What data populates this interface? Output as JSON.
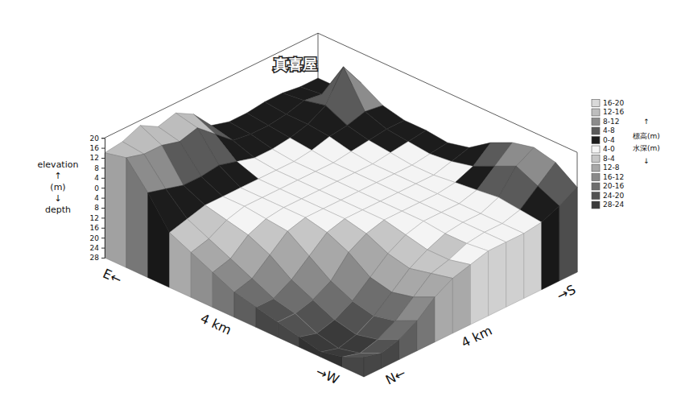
{
  "chart_data": {
    "type": "surface",
    "annotation": "真喜屋",
    "z_label": [
      "elevation",
      "↑",
      "(m)",
      "↓",
      "depth"
    ],
    "x_label": [
      "E←",
      "4 km",
      "→W"
    ],
    "y_label": [
      "N←",
      "4 km",
      "→S"
    ],
    "zlim": [
      -28,
      20
    ],
    "zticks": [
      {
        "value": -28,
        "label": "28"
      },
      {
        "value": -24,
        "label": "24"
      },
      {
        "value": -20,
        "label": "20"
      },
      {
        "value": -16,
        "label": "16"
      },
      {
        "value": -12,
        "label": "12"
      },
      {
        "value": -8,
        "label": "8"
      },
      {
        "value": -4,
        "label": "4"
      },
      0,
      4,
      8,
      12,
      16,
      20
    ],
    "z": [
      [
        14,
        16,
        6,
        -6,
        -10,
        -14,
        -18,
        -20,
        -22,
        -24,
        -26,
        -24,
        -20
      ],
      [
        15,
        14,
        4,
        -4,
        -8,
        -12,
        -16,
        -20,
        -22,
        -26,
        -28,
        -26,
        -22
      ],
      [
        18,
        14,
        2,
        -2,
        -4,
        -6,
        -10,
        -16,
        -20,
        -24,
        -26,
        -24,
        -20
      ],
      [
        14,
        12,
        2,
        -2,
        -2,
        -3,
        -4,
        -10,
        -16,
        -20,
        -22,
        -20,
        -16
      ],
      [
        16,
        14,
        3,
        -2,
        -2,
        -2,
        -2,
        -4,
        -8,
        -14,
        -16,
        -14,
        -10
      ],
      [
        12,
        8,
        1,
        -2,
        -2,
        -2,
        -2,
        -2,
        -4,
        -8,
        -10,
        -8,
        -6
      ],
      [
        4,
        2,
        -1,
        -2,
        -2,
        -2,
        -2,
        -2,
        -2,
        -4,
        -6,
        -6,
        -4
      ],
      [
        2,
        1,
        -1,
        -2,
        -2,
        -2,
        -2,
        -2,
        -2,
        -2,
        -3,
        -3,
        -2
      ],
      [
        2,
        1,
        0,
        -1,
        -2,
        -2,
        -2,
        -2,
        -2,
        -2,
        -2,
        -2,
        -2
      ],
      [
        3,
        2,
        2,
        1,
        -1,
        -2,
        -2,
        -2,
        -2,
        -2,
        -2,
        -2,
        -2
      ],
      [
        3,
        4,
        6,
        2,
        0,
        -1,
        -2,
        -2,
        -1,
        0,
        1,
        0,
        -1
      ],
      [
        2,
        3,
        18,
        4,
        1,
        0,
        -1,
        0,
        2,
        6,
        10,
        6,
        2
      ],
      [
        2,
        2,
        8,
        3,
        1,
        1,
        0,
        2,
        8,
        12,
        14,
        12,
        6
      ]
    ],
    "legend": "right",
    "color_bands": [
      {
        "label": "16-20",
        "min": 16,
        "max": 20,
        "color": "#d9d9d9"
      },
      {
        "label": "12-16",
        "min": 12,
        "max": 16,
        "color": "#bdbdbd"
      },
      {
        "label": "8-12",
        "min": 8,
        "max": 12,
        "color": "#8c8c8c"
      },
      {
        "label": "4-8",
        "min": 4,
        "max": 8,
        "color": "#5a5a5a"
      },
      {
        "label": "0-4",
        "min": 0,
        "max": 4,
        "color": "#1c1c1c"
      },
      {
        "label": "4-0",
        "min": -4,
        "max": 0,
        "color": "#f4f4f4"
      },
      {
        "label": "8-4",
        "min": -8,
        "max": -4,
        "color": "#c6c6c6"
      },
      {
        "label": "12-8",
        "min": -12,
        "max": -8,
        "color": "#a8a8a8"
      },
      {
        "label": "16-12",
        "min": -16,
        "max": -12,
        "color": "#8a8a8a"
      },
      {
        "label": "20-16",
        "min": -20,
        "max": -16,
        "color": "#6e6e6e"
      },
      {
        "label": "24-20",
        "min": -24,
        "max": -20,
        "color": "#525252"
      },
      {
        "label": "28-24",
        "min": -28,
        "max": -24,
        "color": "#3a3a3a"
      }
    ],
    "legend_notes": [
      "↑",
      "標高(m)",
      "水深(m)",
      "↓"
    ]
  }
}
